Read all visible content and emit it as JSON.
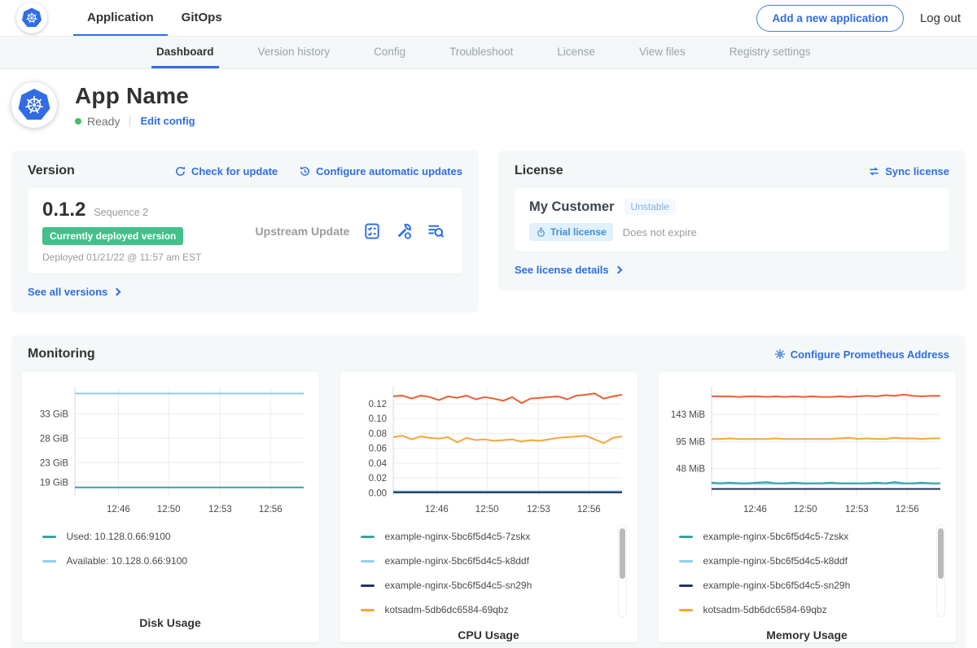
{
  "topnav": {
    "tabs": [
      {
        "label": "Application",
        "active": true
      },
      {
        "label": "GitOps",
        "active": false
      }
    ],
    "add_app_button": "Add a new application",
    "logout": "Log out"
  },
  "subnav": {
    "tabs": [
      "Dashboard",
      "Version history",
      "Config",
      "Troubleshoot",
      "License",
      "View files",
      "Registry settings"
    ],
    "active": "Dashboard"
  },
  "app_header": {
    "name": "App Name",
    "status": "Ready",
    "edit_config": "Edit config"
  },
  "version_card": {
    "title": "Version",
    "check_for_update": "Check for update",
    "configure_auto": "Configure automatic updates",
    "version": "0.1.2",
    "sequence": "Sequence 2",
    "deployed_badge": "Currently deployed version",
    "deployed_at": "Deployed 01/21/22 @ 11:57 am EST",
    "source": "Upstream Update",
    "see_all": "See all versions"
  },
  "license_card": {
    "title": "License",
    "sync": "Sync license",
    "customer": "My Customer",
    "channel": "Unstable",
    "type_badge": "Trial license",
    "expiry": "Does not expire",
    "see_details": "See license details"
  },
  "monitoring": {
    "title": "Monitoring",
    "configure_prometheus": "Configure Prometheus Address"
  },
  "colors": {
    "link_blue": "#2e6de4",
    "active_tab": "#326de6",
    "badge_green": "#44c08a",
    "ready_green": "#44bb66"
  },
  "chart_data": [
    {
      "type": "line",
      "title": "Disk Usage",
      "ylim": [
        16.2,
        38.6
      ],
      "y_ticks": [
        {
          "label": "33 GiB",
          "value": 33
        },
        {
          "label": "28 GiB",
          "value": 28
        },
        {
          "label": "23 GiB",
          "value": 23
        },
        {
          "label": "19 GiB",
          "value": 19
        }
      ],
      "x_ticks": [
        {
          "label": "12:46",
          "pos": 0.19
        },
        {
          "label": "12:50",
          "pos": 0.41
        },
        {
          "label": "12:53",
          "pos": 0.635
        },
        {
          "label": "12:56",
          "pos": 0.855
        }
      ],
      "series": [
        {
          "name": "Available: 10.128.0.66:9100",
          "color": "#8fd0ec",
          "values": [
            37.2,
            37.2,
            37.2,
            37.2,
            37.2,
            37.2
          ]
        },
        {
          "name": "Used: 10.128.0.66:9100",
          "color": "#37a3a4",
          "values": [
            17.9,
            17.9,
            17.9,
            17.9,
            17.9,
            17.9
          ]
        }
      ],
      "legend": [
        {
          "label": "Used: 10.128.0.66:9100",
          "color": "#37a3a4"
        },
        {
          "label": "Available: 10.128.0.66:9100",
          "color": "#8fd0ec"
        }
      ],
      "legend_scrollbar": false
    },
    {
      "type": "line",
      "title": "CPU Usage",
      "ylim": [
        -0.004,
        0.143
      ],
      "y_ticks": [
        {
          "label": "0.12",
          "value": 0.12
        },
        {
          "label": "0.10",
          "value": 0.1
        },
        {
          "label": "0.08",
          "value": 0.08
        },
        {
          "label": "0.06",
          "value": 0.06
        },
        {
          "label": "0.04",
          "value": 0.04
        },
        {
          "label": "0.02",
          "value": 0.02
        },
        {
          "label": "0.00",
          "value": 0.0
        }
      ],
      "x_ticks": [
        {
          "label": "12:46",
          "pos": 0.19
        },
        {
          "label": "12:50",
          "pos": 0.41
        },
        {
          "label": "12:53",
          "pos": 0.635
        },
        {
          "label": "12:56",
          "pos": 0.855
        }
      ],
      "series": [
        {
          "name": "example-nginx-5bc6f5d4c5-k8ddf",
          "color": "#8fd0ec",
          "values": [
            0.002,
            0.002,
            0.002,
            0.002
          ]
        },
        {
          "name": "example-nginx-5bc6f5d4c5-7zskx",
          "color": "#37a3a4",
          "values": [
            0.001,
            0.001,
            0.001,
            0.001
          ]
        },
        {
          "name": "example-nginx-5bc6f5d4c5-sn29h",
          "color": "#25345e",
          "values": [
            0.0005,
            0.0005,
            0.0005,
            0.0005
          ]
        },
        {
          "name": "kotsadm-5db6dc6584-69qbz",
          "color": "#f7a43b",
          "values": [
            0.075,
            0.077,
            0.072,
            0.076,
            0.074,
            0.073,
            0.075,
            0.068,
            0.074,
            0.071,
            0.072,
            0.07,
            0.071,
            0.072,
            0.069,
            0.071,
            0.07,
            0.072,
            0.074,
            0.075,
            0.076,
            0.077,
            0.072,
            0.067,
            0.074,
            0.076
          ]
        },
        {
          "name": "",
          "color": "#ee5d34",
          "values": [
            0.13,
            0.131,
            0.127,
            0.131,
            0.129,
            0.125,
            0.13,
            0.128,
            0.131,
            0.126,
            0.129,
            0.127,
            0.124,
            0.129,
            0.121,
            0.127,
            0.128,
            0.129,
            0.13,
            0.126,
            0.131,
            0.132,
            0.134,
            0.127,
            0.13,
            0.132
          ]
        }
      ],
      "legend": [
        {
          "label": "example-nginx-5bc6f5d4c5-7zskx",
          "color": "#37a3a4"
        },
        {
          "label": "example-nginx-5bc6f5d4c5-k8ddf",
          "color": "#8fd0ec"
        },
        {
          "label": "example-nginx-5bc6f5d4c5-sn29h",
          "color": "#25345e"
        },
        {
          "label": "kotsadm-5db6dc6584-69qbz",
          "color": "#f7a43b"
        }
      ],
      "legend_scrollbar": true
    },
    {
      "type": "line",
      "title": "Memory Usage",
      "ylim": [
        0,
        192
      ],
      "y_ticks": [
        {
          "label": "143 MiB",
          "value": 143
        },
        {
          "label": "95 MiB",
          "value": 95
        },
        {
          "label": "48 MiB",
          "value": 48
        }
      ],
      "x_ticks": [
        {
          "label": "12:46",
          "pos": 0.19
        },
        {
          "label": "12:50",
          "pos": 0.41
        },
        {
          "label": "12:53",
          "pos": 0.635
        },
        {
          "label": "12:56",
          "pos": 0.855
        }
      ],
      "series": [
        {
          "name": "example-nginx-5bc6f5d4c5-k8ddf",
          "color": "#8fd0ec",
          "values": [
            21,
            21,
            21,
            21
          ]
        },
        {
          "name": "example-nginx-5bc6f5d4c5-7zskx",
          "color": "#37a3a4",
          "values": [
            23,
            22,
            23,
            22,
            22,
            23,
            24,
            22,
            22,
            23,
            22,
            22,
            22,
            23,
            22,
            22,
            22,
            22,
            23,
            22,
            24,
            22,
            22,
            23,
            22,
            22
          ]
        },
        {
          "name": "example-nginx-5bc6f5d4c5-sn29h",
          "color": "#25345e",
          "values": [
            12,
            12,
            12,
            12
          ]
        },
        {
          "name": "kotsadm-5db6dc6584-69qbz",
          "color": "#f7a43b",
          "values": [
            100,
            100,
            101,
            100,
            100,
            100,
            100,
            101,
            100,
            100,
            100,
            100,
            100,
            100,
            101,
            102,
            100,
            101,
            100,
            100,
            102,
            101,
            101,
            100,
            101,
            101
          ]
        },
        {
          "name": "",
          "color": "#ee5d34",
          "values": [
            175,
            175,
            175,
            174,
            175,
            175,
            174,
            175,
            174,
            175,
            174,
            175,
            174,
            174,
            175,
            174,
            175,
            176,
            175,
            177,
            176,
            178,
            176,
            175,
            176,
            176
          ]
        }
      ],
      "legend": [
        {
          "label": "example-nginx-5bc6f5d4c5-7zskx",
          "color": "#37a3a4"
        },
        {
          "label": "example-nginx-5bc6f5d4c5-k8ddf",
          "color": "#8fd0ec"
        },
        {
          "label": "example-nginx-5bc6f5d4c5-sn29h",
          "color": "#25345e"
        },
        {
          "label": "kotsadm-5db6dc6584-69qbz",
          "color": "#f7a43b"
        }
      ],
      "legend_scrollbar": true
    }
  ]
}
